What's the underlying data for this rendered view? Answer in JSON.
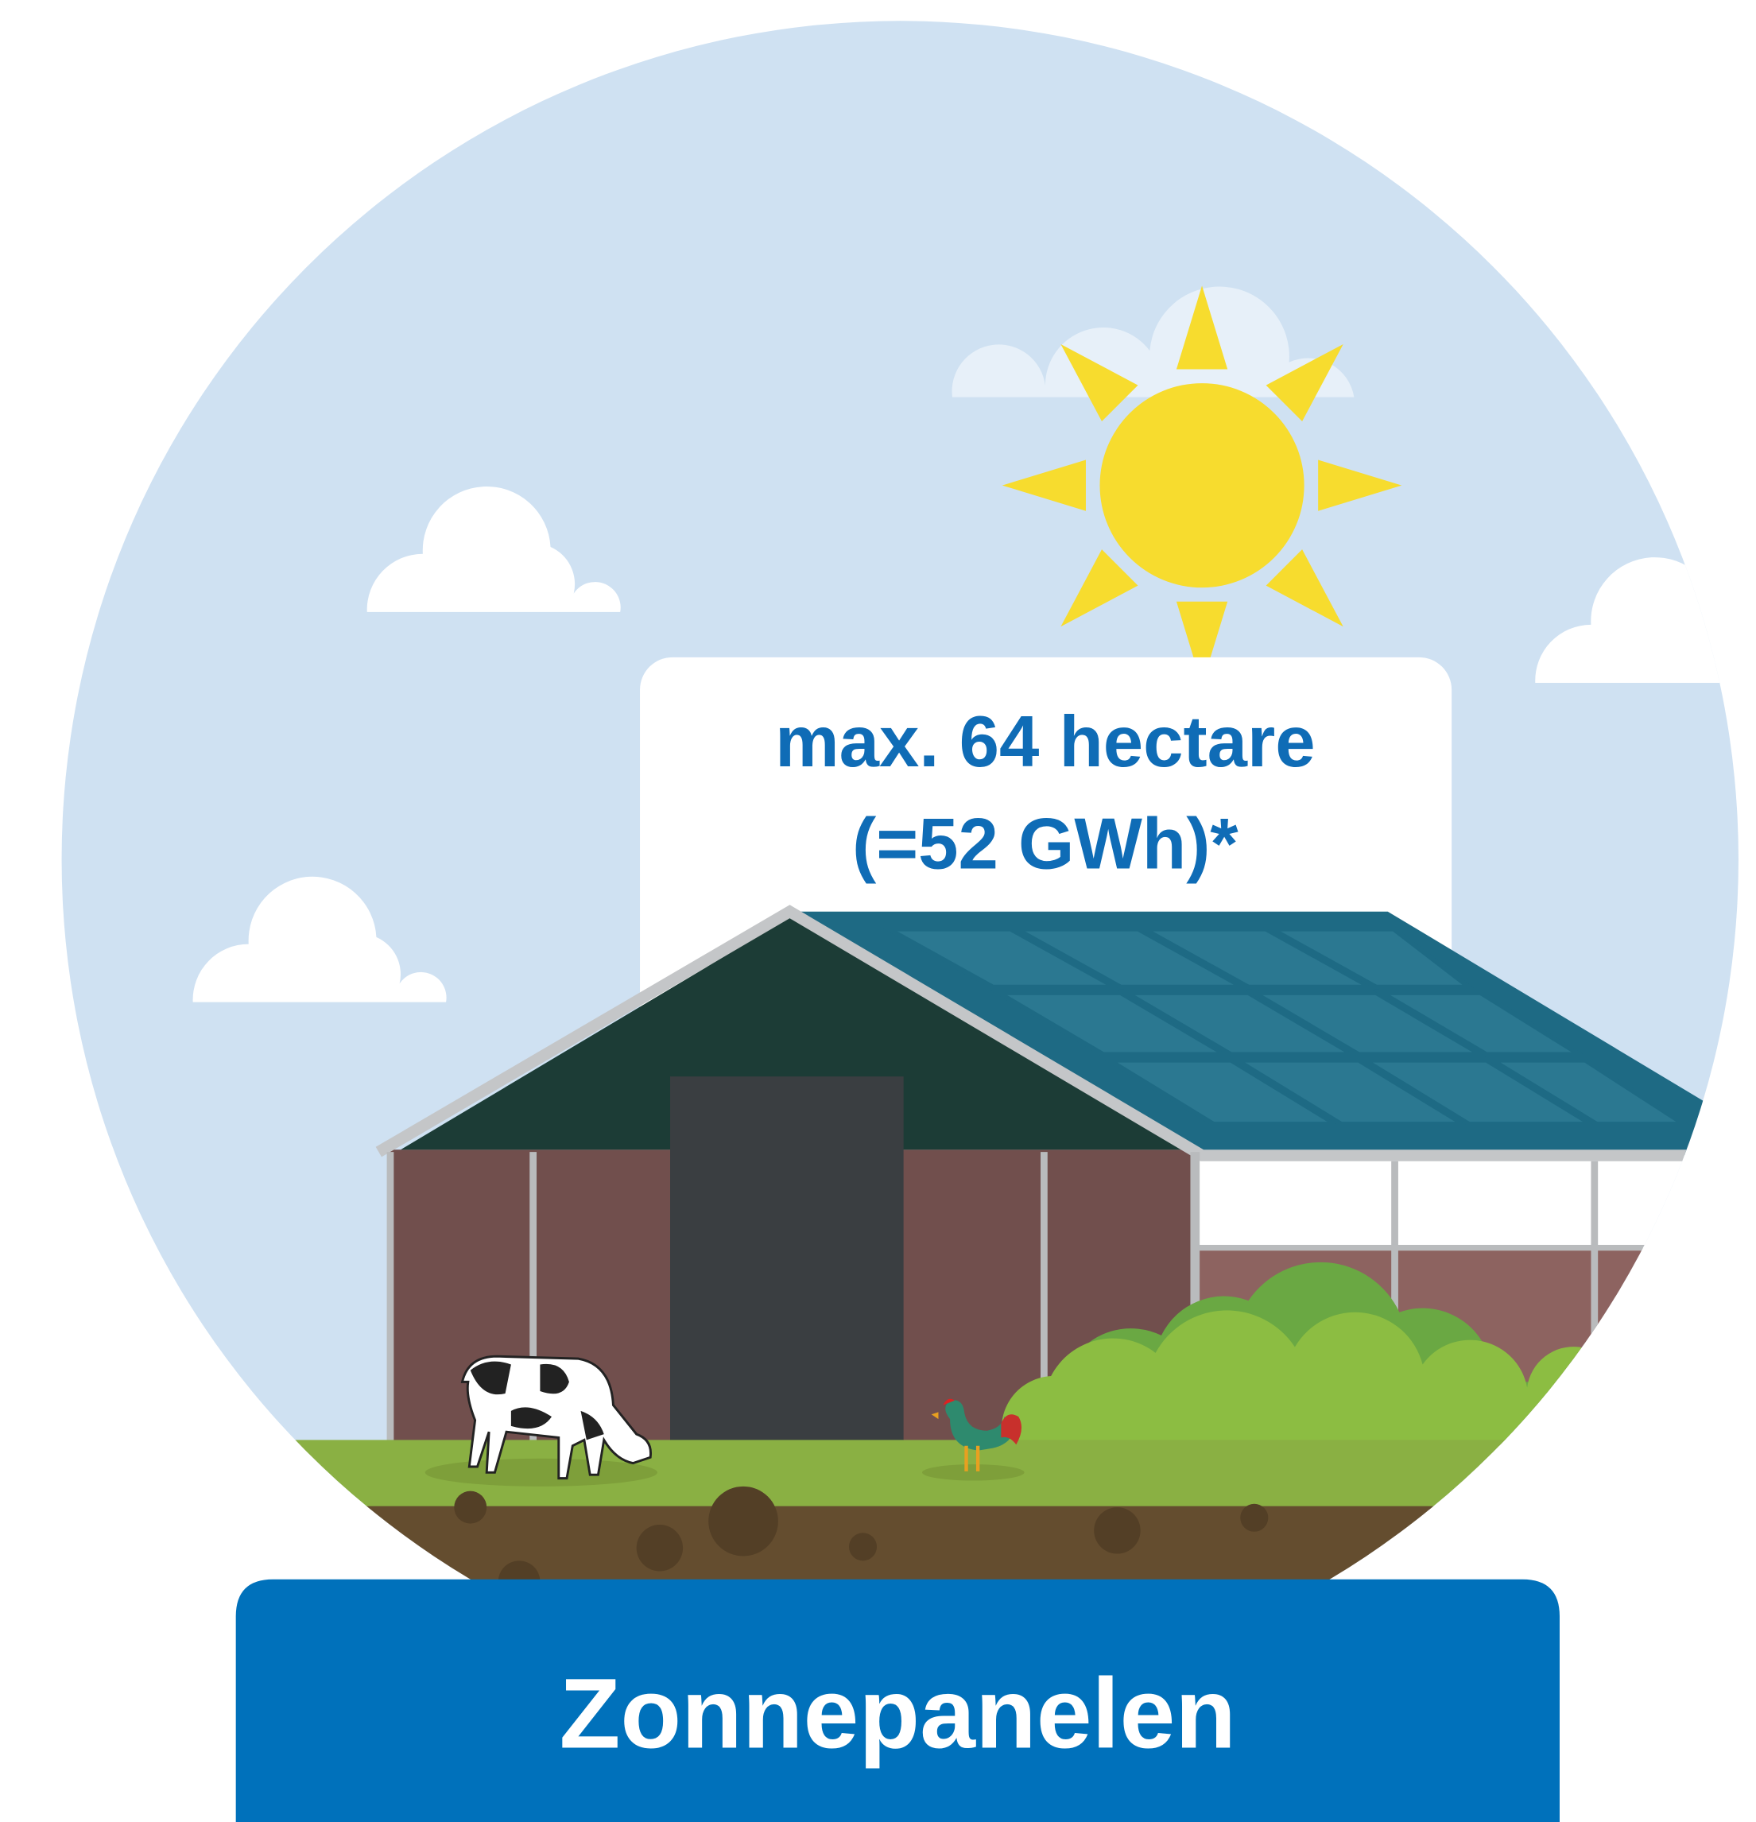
{
  "label_box": {
    "lines": [
      "max. 64 hectare",
      "(=52 GWh)*"
    ]
  },
  "banner": {
    "title": "Zonnepanelen"
  }
}
